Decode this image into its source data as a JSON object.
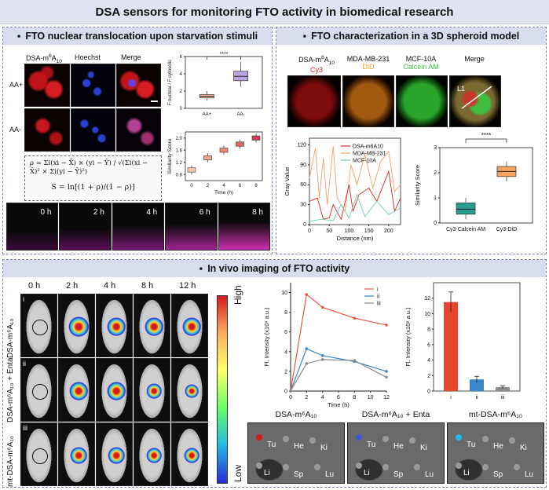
{
  "title": "DSA sensors for monitoring FTO activity in biomedical research",
  "panel_a": {
    "heading": "FTO nuclear translocation upon starvation stimuli",
    "col_labels": [
      "DSA-m",
      "6",
      "A",
      "10",
      "Hoechst",
      "Merge"
    ],
    "row_labels": [
      "AA+",
      "AA-"
    ],
    "formula_rho": "ρ = Σi(xi − X̄) × (yi − Ȳ) / √(Σi(xi − X̄)² × Σi(yi − Ȳ)²)",
    "formula_s": "S = ln[(1 + ρ)/(1 − ρ)]",
    "time_labels": [
      "0 h",
      "2 h",
      "4 h",
      "6 h",
      "8 h"
    ],
    "colors": {
      "red": "#e8262b",
      "blue": "#2946d8",
      "accent": "#f03b3b"
    }
  },
  "panel_b": {
    "heading": "FTO characterization in a 3D spheroid model",
    "col_labels": [
      "DSA-m",
      "6",
      "A",
      "10",
      "MDA-MB-231",
      "MCF-10A",
      "Merge"
    ],
    "col_sublabels": [
      "Cy3",
      "DiD",
      "Calcein AM"
    ],
    "line_label": "L1",
    "colors": {
      "cy3": "#e3231f",
      "did": "#f2a12d",
      "calcein": "#3ec43e"
    }
  },
  "panel_c": {
    "heading": "In vivo imaging of FTO activity",
    "time_labels": [
      "0 h",
      "2 h",
      "4 h",
      "8 h",
      "12 h"
    ],
    "row_numerals": [
      "i",
      "ii",
      "iii"
    ],
    "row_labels": [
      "DSA-m⁶A₁₀",
      "DSA-m⁶A₁₀ + Enta",
      "mt-DSA-m⁶A₁₀"
    ],
    "scale_high": "High",
    "scale_low": "Low",
    "organ_titles": [
      "DSA-m⁶A₁₀",
      "DSA-m⁶A₁₀ + Enta",
      "mt-DSA-m⁶A₁₀"
    ],
    "organ_labels": [
      "Tu",
      "He",
      "Ki",
      "Li",
      "Sp",
      "Lu"
    ]
  },
  "chart_data": [
    {
      "type": "box",
      "ylabel": "F nuclear / F cytosolic",
      "categories": [
        "AA+",
        "AA-"
      ],
      "medians": [
        1.4,
        3.7
      ],
      "q1": [
        1.2,
        3.2
      ],
      "q3": [
        1.6,
        4.3
      ],
      "whisker_low": [
        0.9,
        2.5
      ],
      "whisker_high": [
        2.0,
        5.4
      ],
      "ylim": [
        0,
        6
      ],
      "yticks": [
        "0",
        "2",
        "4",
        "6"
      ],
      "significance": "****"
    },
    {
      "type": "box",
      "xlabel": "Time (h)",
      "ylabel": "Similarity Score",
      "x": [
        "0",
        "2",
        "4",
        "6",
        "8"
      ],
      "medians": [
        0.95,
        1.35,
        1.6,
        1.8,
        2.0
      ],
      "ylim": [
        0.6,
        2.2
      ],
      "yticks": [
        "0.8",
        "1.2",
        "1.6",
        "2.0"
      ]
    },
    {
      "type": "line",
      "xlabel": "Distance (nm)",
      "ylabel": "Gray Value",
      "xticks": [
        "0",
        "50",
        "100",
        "150",
        "200"
      ],
      "yticks": [
        "0",
        "30",
        "60",
        "90",
        "120"
      ],
      "xlim": [
        0,
        230
      ],
      "ylim": [
        0,
        130
      ],
      "series": [
        {
          "name": "DSA-m6A10",
          "color": "#e3231f"
        },
        {
          "name": "MDA-MB-231",
          "color": "#f2a16d"
        },
        {
          "name": "MCF-10A",
          "color": "#6fcfb8"
        }
      ]
    },
    {
      "type": "box",
      "ylabel": "Similarity Score",
      "categories": [
        "Cy3-Calcein AM",
        "Cy3-DiD"
      ],
      "medians": [
        0.55,
        2.05
      ],
      "q1": [
        0.35,
        1.85
      ],
      "q3": [
        0.8,
        2.25
      ],
      "ylim": [
        0,
        3
      ],
      "yticks": [
        "0",
        "1",
        "2",
        "3"
      ],
      "colors": [
        "#2a9d8f",
        "#f4a261"
      ],
      "significance": "****"
    },
    {
      "type": "line",
      "xlabel": "Time (h)",
      "ylabel": "Fl. Intensity (x10⁹ a.u.)",
      "x": [
        0,
        2,
        4,
        8,
        12
      ],
      "xticks": [
        "0",
        "2",
        "4",
        "6",
        "8",
        "10",
        "12"
      ],
      "yticks": [
        "0",
        "2",
        "4",
        "6",
        "8",
        "10"
      ],
      "ylim": [
        0,
        11
      ],
      "series": [
        {
          "name": "i",
          "values": [
            0,
            9.8,
            8.5,
            7.4,
            6.7
          ],
          "color": "#e8573e"
        },
        {
          "name": "ii",
          "values": [
            0,
            4.3,
            3.6,
            3.0,
            2.0
          ],
          "color": "#3a86c8"
        },
        {
          "name": "iii",
          "values": [
            0,
            2.8,
            3.2,
            3.1,
            1.4
          ],
          "color": "#8c8c8c"
        }
      ]
    },
    {
      "type": "bar",
      "ylabel": "Fl. Intensity (x10⁹ a.u.)",
      "categories": [
        "i",
        "ii",
        "iii"
      ],
      "values": [
        11.5,
        1.5,
        0.5
      ],
      "errors": [
        1.3,
        0.4,
        0.15
      ],
      "ylim": [
        0,
        14
      ],
      "yticks": [
        "0",
        "2",
        "4",
        "6",
        "8",
        "10",
        "12"
      ],
      "colors": [
        "#e8452c",
        "#3a86c8",
        "#8c8c8c"
      ]
    }
  ]
}
